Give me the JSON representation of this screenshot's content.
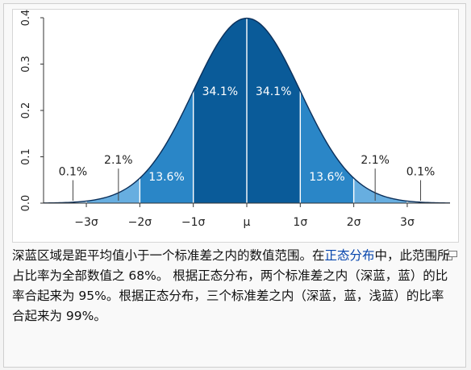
{
  "chart_data": {
    "type": "area",
    "distribution": "normal",
    "mean": 0,
    "sd": 1,
    "xlim": [
      -3.8,
      3.8
    ],
    "ylim": [
      0,
      0.4
    ],
    "y_ticks": [
      0,
      0.1,
      0.2,
      0.3,
      0.4
    ],
    "y_tick_labels": [
      "0.0",
      "0.1",
      "0.2",
      "0.3",
      "0.4"
    ],
    "x_ticks": [
      -3,
      -2,
      -1,
      0,
      1,
      2,
      3
    ],
    "x_tick_labels": [
      "−3σ",
      "−2σ",
      "−1σ",
      "μ",
      "1σ",
      "2σ",
      "3σ"
    ],
    "bands": [
      {
        "from": -1,
        "to": 1,
        "shade": "dark",
        "color": "#0a5b99"
      },
      {
        "from": -2,
        "to": -1,
        "shade": "medium",
        "color": "#2a86c7"
      },
      {
        "from": 1,
        "to": 2,
        "shade": "medium",
        "color": "#2a86c7"
      },
      {
        "from": -3,
        "to": -2,
        "shade": "light",
        "color": "#67aee0"
      },
      {
        "from": 2,
        "to": 3,
        "shade": "light",
        "color": "#67aee0"
      },
      {
        "from": -3.8,
        "to": -3,
        "shade": "lightest",
        "color": "#a9d2ef"
      },
      {
        "from": 3,
        "to": 3.8,
        "shade": "lightest",
        "color": "#a9d2ef"
      }
    ],
    "band_labels": [
      {
        "text": "34.1%",
        "x": -0.5,
        "y": 0.233,
        "inside": true
      },
      {
        "text": "34.1%",
        "x": 0.5,
        "y": 0.233,
        "inside": true
      },
      {
        "text": "13.6%",
        "x": -1.5,
        "y": 0.049,
        "inside": true
      },
      {
        "text": "13.6%",
        "x": 1.5,
        "y": 0.049,
        "inside": true
      },
      {
        "text": "2.1%",
        "x": -2.4,
        "y": 0.085,
        "inside": false,
        "marker_x": -2.4
      },
      {
        "text": "2.1%",
        "x": 2.4,
        "y": 0.085,
        "inside": false,
        "marker_x": 2.4
      },
      {
        "text": "0.1%",
        "x": -3.25,
        "y": 0.06,
        "inside": false,
        "marker_x": -3.25
      },
      {
        "text": "0.1%",
        "x": 3.25,
        "y": 0.06,
        "inside": false,
        "marker_x": 3.25
      }
    ]
  },
  "caption": {
    "part1": "深蓝区域是距平均值小于一个标准差之内的数值范围。在",
    "link": "正态分布",
    "part2": "中，此范围所占比率为全部数值之 68%。 根据正态分布，两个标准差之内（深蓝，蓝）的比率合起来为 95%。根据正态分布，三个标准差之内（深蓝，蓝，浅蓝）的比率合起来为 99%。"
  },
  "colors": {
    "curve": "#0b2f5a",
    "axis": "#333333"
  },
  "enlarge_icon": "enlarge-icon"
}
